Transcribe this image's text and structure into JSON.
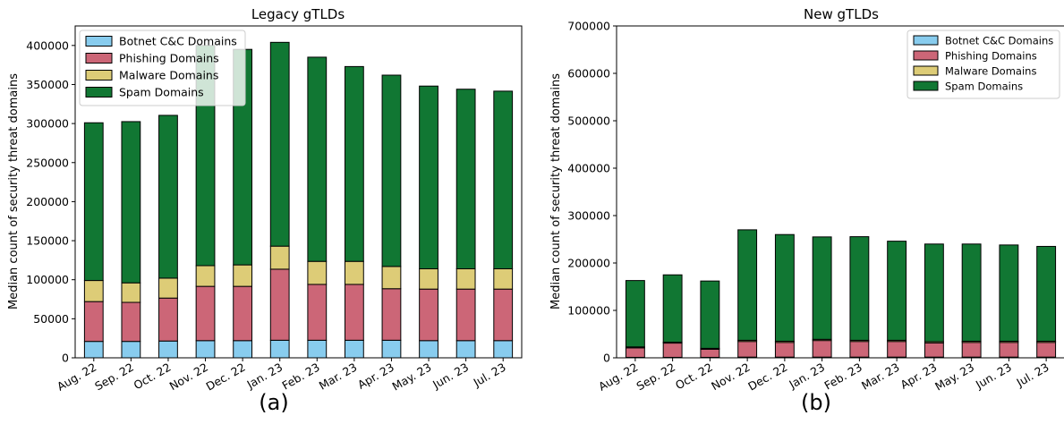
{
  "colors": {
    "botnet": "#88ccee",
    "phishing": "#cc6677",
    "malware": "#ddcc77",
    "spam": "#117733"
  },
  "chart_data": [
    {
      "type": "bar",
      "stacked": true,
      "title": "Legacy gTLDs",
      "panel_label": "(a)",
      "ylabel": "Median count of security threat domains",
      "xlabel": "",
      "ylim": [
        0,
        425000
      ],
      "yticks": [
        0,
        50000,
        100000,
        150000,
        200000,
        250000,
        300000,
        350000,
        400000
      ],
      "legend": "top-left",
      "grid": false,
      "categories": [
        "Aug. 22",
        "Sep. 22",
        "Oct. 22",
        "Nov. 22",
        "Dec. 22",
        "Jan. 23",
        "Feb. 23",
        "Mar. 23",
        "Apr. 23",
        "May. 23",
        "Jun. 23",
        "Jul. 23"
      ],
      "series": [
        {
          "name": "Botnet C&C Domains",
          "color": "botnet",
          "values": [
            21000,
            21000,
            21500,
            22000,
            22000,
            22500,
            22500,
            22500,
            22500,
            22000,
            22000,
            22000
          ]
        },
        {
          "name": "Phishing Domains",
          "color": "phishing",
          "values": [
            51000,
            50000,
            55000,
            69500,
            69500,
            91000,
            71500,
            71500,
            66000,
            66000,
            66000,
            66000
          ]
        },
        {
          "name": "Malware Domains",
          "color": "malware",
          "values": [
            27000,
            25000,
            25500,
            26500,
            27500,
            29500,
            29500,
            29500,
            28500,
            26000,
            26000,
            26000
          ]
        },
        {
          "name": "Spam Domains",
          "color": "spam",
          "values": [
            202000,
            206500,
            208500,
            282000,
            276000,
            261000,
            261500,
            249500,
            245000,
            234000,
            230000,
            227500
          ]
        }
      ]
    },
    {
      "type": "bar",
      "stacked": true,
      "title": "New gTLDs",
      "panel_label": "(b)",
      "ylabel": "Median count of security threat domains",
      "xlabel": "",
      "ylim": [
        0,
        700000
      ],
      "yticks": [
        0,
        100000,
        200000,
        300000,
        400000,
        500000,
        600000,
        700000
      ],
      "legend": "top-right",
      "grid": false,
      "categories": [
        "Aug. 22",
        "Sep. 22",
        "Oct. 22",
        "Nov. 22",
        "Dec. 22",
        "Jan. 23",
        "Feb. 23",
        "Mar. 23",
        "Apr. 23",
        "May. 23",
        "Jun. 23",
        "Jul. 23"
      ],
      "series": [
        {
          "name": "Botnet C&C Domains",
          "color": "botnet",
          "values": [
            1000,
            1000,
            1000,
            1500,
            1500,
            1500,
            1500,
            1500,
            1500,
            1500,
            1500,
            1500
          ]
        },
        {
          "name": "Phishing Domains",
          "color": "phishing",
          "values": [
            20000,
            30000,
            17000,
            33000,
            31000,
            35000,
            33000,
            33000,
            30000,
            31000,
            31000,
            31000
          ]
        },
        {
          "name": "Malware Domains",
          "color": "malware",
          "values": [
            2000,
            2000,
            2000,
            2500,
            2500,
            2500,
            2500,
            2500,
            2500,
            2500,
            2500,
            2500
          ]
        },
        {
          "name": "Spam Domains",
          "color": "spam",
          "values": [
            140000,
            142000,
            142000,
            233000,
            225000,
            216000,
            218500,
            209000,
            206000,
            205000,
            203000,
            200000
          ]
        }
      ]
    }
  ]
}
